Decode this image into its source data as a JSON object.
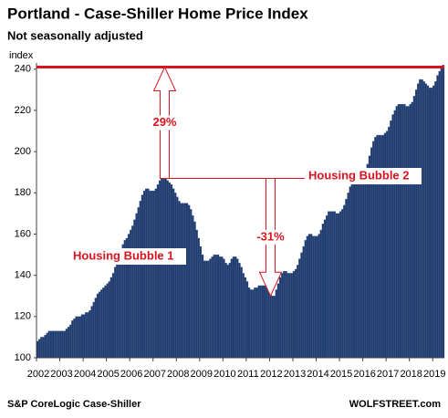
{
  "chart_data": {
    "type": "bar",
    "title": "Portland - Case-Shiller Home Price Index",
    "subtitle": "Not seasonally adjusted",
    "y_label": "index",
    "source": "S&P CoreLogic Case-Shiller",
    "credit": "WOLFSTREET.com",
    "color": "#1f3a6b",
    "annotation_color": "#d9141e",
    "ylim": [
      100,
      243
    ],
    "yticks": [
      100,
      120,
      140,
      160,
      180,
      200,
      220,
      240
    ],
    "reference_line": 241,
    "arrows": [
      {
        "label": "29%",
        "from": 187,
        "to": 241
      },
      {
        "label": "-31%",
        "from": 187,
        "to": 130
      }
    ],
    "notes": [
      "Housing Bubble 1",
      "Housing Bubble 2"
    ],
    "categories": [
      "2002",
      null,
      null,
      null,
      null,
      null,
      null,
      null,
      null,
      null,
      null,
      null,
      "2003",
      null,
      null,
      null,
      null,
      null,
      null,
      null,
      null,
      null,
      null,
      null,
      "2004",
      null,
      null,
      null,
      null,
      null,
      null,
      null,
      null,
      null,
      null,
      null,
      "2005",
      null,
      null,
      null,
      null,
      null,
      null,
      null,
      null,
      null,
      null,
      null,
      "2006",
      null,
      null,
      null,
      null,
      null,
      null,
      null,
      null,
      null,
      null,
      null,
      "2007",
      null,
      null,
      null,
      null,
      null,
      null,
      null,
      null,
      null,
      null,
      null,
      "2008",
      null,
      null,
      null,
      null,
      null,
      null,
      null,
      null,
      null,
      null,
      null,
      "2009",
      null,
      null,
      null,
      null,
      null,
      null,
      null,
      null,
      null,
      null,
      null,
      "2010",
      null,
      null,
      null,
      null,
      null,
      null,
      null,
      null,
      null,
      null,
      null,
      "2011",
      null,
      null,
      null,
      null,
      null,
      null,
      null,
      null,
      null,
      null,
      null,
      "2012",
      null,
      null,
      null,
      null,
      null,
      null,
      null,
      null,
      null,
      null,
      null,
      "2013",
      null,
      null,
      null,
      null,
      null,
      null,
      null,
      null,
      null,
      null,
      null,
      "2014",
      null,
      null,
      null,
      null,
      null,
      null,
      null,
      null,
      null,
      null,
      null,
      "2015",
      null,
      null,
      null,
      null,
      null,
      null,
      null,
      null,
      null,
      null,
      null,
      "2016",
      null,
      null,
      null,
      null,
      null,
      null,
      null,
      null,
      null,
      null,
      null,
      "2017",
      null,
      null,
      null,
      null,
      null,
      null,
      null,
      null,
      null,
      null,
      null,
      "2018",
      null,
      null,
      null,
      null,
      null,
      null,
      null,
      null,
      null,
      null,
      null,
      "2019",
      null,
      null,
      null,
      null,
      null
    ],
    "values": [
      108,
      109,
      110,
      110,
      111,
      112,
      113,
      113,
      113,
      113,
      113,
      113,
      113,
      113,
      113,
      114,
      115,
      116,
      118,
      119,
      120,
      120,
      120,
      121,
      121,
      122,
      122,
      123,
      125,
      127,
      129,
      131,
      132,
      133,
      134,
      135,
      136,
      137,
      139,
      141,
      144,
      147,
      150,
      153,
      155,
      157,
      158,
      160,
      162,
      164,
      167,
      170,
      173,
      176,
      179,
      181,
      182,
      182,
      181,
      181,
      181,
      182,
      184,
      186,
      187,
      187,
      187,
      186,
      185,
      184,
      182,
      180,
      178,
      176,
      175,
      175,
      175,
      175,
      174,
      172,
      169,
      166,
      162,
      158,
      154,
      150,
      147,
      147,
      147,
      148,
      149,
      150,
      150,
      150,
      149,
      149,
      148,
      146,
      145,
      146,
      148,
      149,
      149,
      148,
      146,
      144,
      141,
      139,
      137,
      134,
      133,
      133,
      134,
      134,
      135,
      135,
      135,
      135,
      134,
      133,
      131,
      130,
      130,
      133,
      136,
      139,
      141,
      142,
      142,
      141,
      141,
      141,
      142,
      143,
      145,
      148,
      151,
      154,
      157,
      159,
      160,
      160,
      159,
      159,
      159,
      160,
      162,
      165,
      167,
      169,
      171,
      171,
      171,
      171,
      170,
      170,
      171,
      172,
      174,
      177,
      180,
      183,
      186,
      187,
      187,
      187,
      187,
      187,
      188,
      190,
      194,
      198,
      202,
      205,
      207,
      208,
      208,
      208,
      208,
      209,
      210,
      212,
      215,
      218,
      220,
      222,
      223,
      223,
      223,
      223,
      222,
      222,
      223,
      224,
      227,
      230,
      233,
      235,
      235,
      234,
      233,
      232,
      231,
      231,
      232,
      234,
      237,
      239,
      241,
      242
    ]
  }
}
